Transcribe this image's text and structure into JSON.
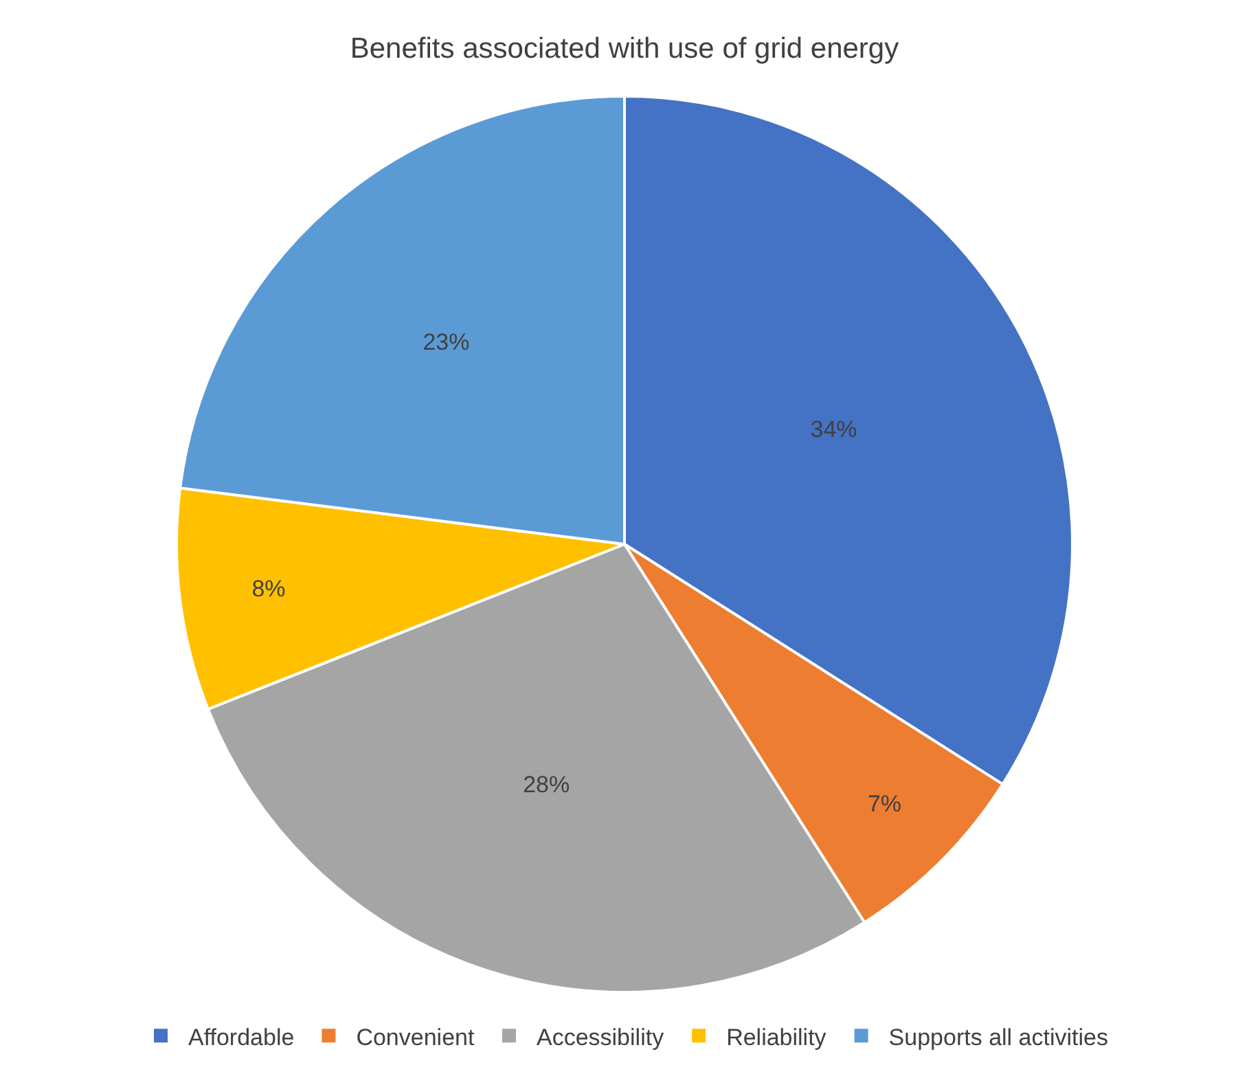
{
  "chart_data": {
    "type": "pie",
    "title": "Benefits associated with use of grid energy",
    "categories": [
      "Affordable",
      "Convenient",
      "Accessibility",
      "Reliability",
      "Supports all activities"
    ],
    "values": [
      34,
      7,
      28,
      8,
      23
    ],
    "colors": [
      "#4472c4",
      "#ed7d31",
      "#a5a5a5",
      "#ffc000",
      "#5b9bd5"
    ],
    "value_labels": [
      "34%",
      "7%",
      "28%",
      "8%",
      "23%"
    ],
    "legend": "bottom"
  }
}
